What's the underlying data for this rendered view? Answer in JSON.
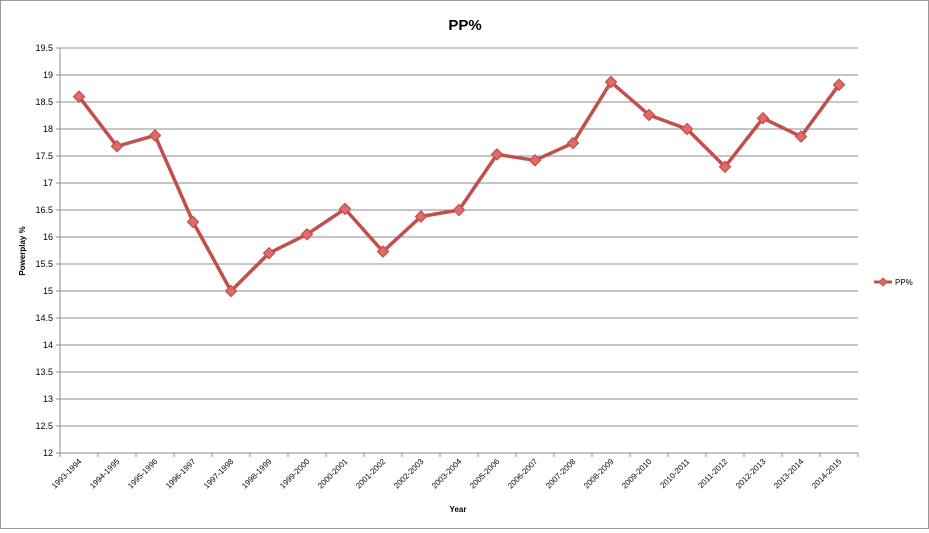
{
  "chart_data": {
    "type": "line",
    "title": "PP%",
    "xlabel": "Year",
    "ylabel": "Powerplay %",
    "categories": [
      "1993-1994",
      "1994-1995",
      "1995-1996",
      "1996-1997",
      "1997-1998",
      "1998-1999",
      "1999-2000",
      "2000-2001",
      "2001-2002",
      "2002-2003",
      "2003-2004",
      "2005-2006",
      "2006-2007",
      "2007-2008",
      "2008-2009",
      "2009-2010",
      "2010-2011",
      "2011-2012",
      "2012-2013",
      "2013-2014",
      "2014-2015"
    ],
    "series": [
      {
        "name": "PP%",
        "color": "#c0504d",
        "marker_color": "#e06b68",
        "values": [
          18.6,
          17.68,
          17.88,
          16.28,
          15.0,
          15.7,
          16.05,
          16.52,
          15.73,
          16.38,
          16.5,
          17.53,
          17.42,
          17.74,
          18.87,
          18.26,
          18.0,
          17.3,
          18.2,
          17.86,
          18.82
        ]
      }
    ],
    "ylim": [
      12,
      19.5
    ],
    "yticks": [
      "12",
      "12.5",
      "13",
      "13.5",
      "14",
      "14.5",
      "15",
      "15.5",
      "16",
      "16.5",
      "17",
      "17.5",
      "18",
      "18.5",
      "19",
      "19.5"
    ],
    "grid": true,
    "legend": "right"
  }
}
